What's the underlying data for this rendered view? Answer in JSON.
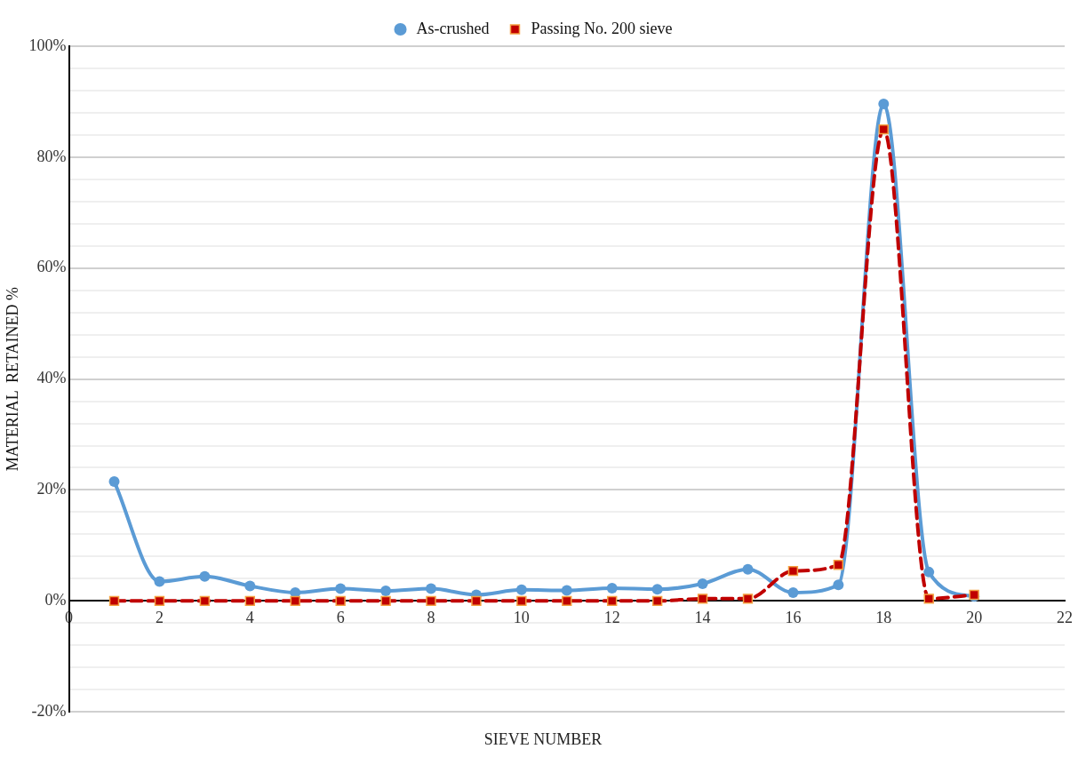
{
  "chart_data": {
    "type": "line",
    "xlabel": "SIEVE NUMBER",
    "ylabel": "MATERIAL  RETAINED %",
    "x": [
      1,
      2,
      3,
      4,
      5,
      6,
      7,
      8,
      9,
      10,
      11,
      12,
      13,
      14,
      15,
      16,
      17,
      18,
      19,
      20
    ],
    "series": [
      {
        "name": "As-crushed",
        "color": "#5b9bd5",
        "marker": "circle",
        "line_style": "solid",
        "values": [
          21.5,
          3.5,
          4.4,
          2.7,
          1.5,
          2.2,
          1.8,
          2.2,
          1.1,
          2.0,
          1.9,
          2.3,
          2.1,
          3.1,
          5.7,
          1.5,
          2.9,
          89.6,
          5.2,
          0.8
        ]
      },
      {
        "name": "Passing No. 200 sieve",
        "color": "#c00000",
        "marker": "square",
        "line_style": "dashed",
        "values": [
          0,
          0,
          0,
          0,
          0,
          0,
          0,
          0,
          0,
          0,
          0,
          0,
          0,
          0.4,
          0.4,
          5.4,
          6.5,
          85,
          0.4,
          1.1
        ]
      }
    ],
    "xlim": [
      0,
      22
    ],
    "xticks": [
      0,
      2,
      4,
      6,
      8,
      10,
      12,
      14,
      16,
      18,
      20,
      22
    ],
    "ylim": [
      -20,
      100
    ],
    "yticks": [
      {
        "value": -20,
        "label": "-20%"
      },
      {
        "value": -16,
        "label": null
      },
      {
        "value": -12,
        "label": null
      },
      {
        "value": -8,
        "label": null
      },
      {
        "value": -4,
        "label": null
      },
      {
        "value": 0,
        "label": "0%"
      },
      {
        "value": 4,
        "label": null
      },
      {
        "value": 8,
        "label": null
      },
      {
        "value": 12,
        "label": null
      },
      {
        "value": 16,
        "label": null
      },
      {
        "value": 20,
        "label": "20%"
      },
      {
        "value": 24,
        "label": null
      },
      {
        "value": 28,
        "label": null
      },
      {
        "value": 32,
        "label": null
      },
      {
        "value": 36,
        "label": null
      },
      {
        "value": 40,
        "label": "40%"
      },
      {
        "value": 44,
        "label": null
      },
      {
        "value": 48,
        "label": null
      },
      {
        "value": 52,
        "label": null
      },
      {
        "value": 56,
        "label": null
      },
      {
        "value": 60,
        "label": "60%"
      },
      {
        "value": 64,
        "label": null
      },
      {
        "value": 68,
        "label": null
      },
      {
        "value": 72,
        "label": null
      },
      {
        "value": 76,
        "label": null
      },
      {
        "value": 80,
        "label": "80%"
      },
      {
        "value": 84,
        "label": null
      },
      {
        "value": 88,
        "label": null
      },
      {
        "value": 92,
        "label": null
      },
      {
        "value": 96,
        "label": null
      },
      {
        "value": 100,
        "label": "100%"
      }
    ],
    "grid": "y",
    "legend": "top"
  }
}
